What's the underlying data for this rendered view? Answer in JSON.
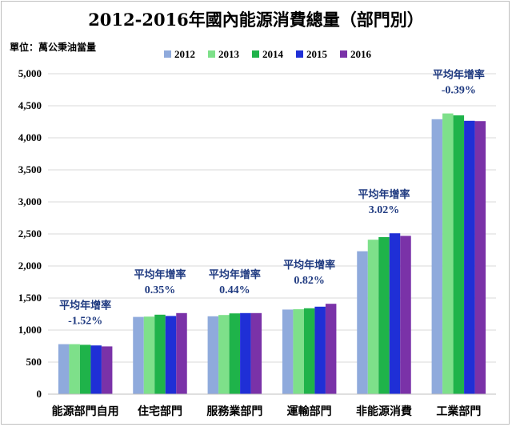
{
  "chart_data": {
    "type": "bar",
    "title": "2012-2016年國內能源消費總量（部門別）",
    "unit_label": "單位：萬公秉油當量",
    "categories": [
      "能源部門自用",
      "住宅部門",
      "服務業部門",
      "運輸部門",
      "非能源消費",
      "工業部門"
    ],
    "series": [
      {
        "name": "2012",
        "color": "#8faadc",
        "values": [
          780,
          1205,
          1215,
          1320,
          2230,
          4290
        ]
      },
      {
        "name": "2013",
        "color": "#7ee08a",
        "values": [
          780,
          1210,
          1235,
          1325,
          2410,
          4380
        ]
      },
      {
        "name": "2014",
        "color": "#1fb34a",
        "values": [
          770,
          1240,
          1260,
          1340,
          2450,
          4350
        ]
      },
      {
        "name": "2015",
        "color": "#1f2fd6",
        "values": [
          760,
          1220,
          1265,
          1365,
          2510,
          4265
        ]
      },
      {
        "name": "2016",
        "color": "#7a32a8",
        "values": [
          745,
          1265,
          1265,
          1410,
          2470,
          4260
        ]
      }
    ],
    "annotations": [
      {
        "label": "平均年增率",
        "rate": "-1.52%"
      },
      {
        "label": "平均年增率",
        "rate": "0.35%"
      },
      {
        "label": "平均年增率",
        "rate": "0.44%"
      },
      {
        "label": "平均年增率",
        "rate": "0.82%"
      },
      {
        "label": "平均年增率",
        "rate": "3.02%"
      },
      {
        "label": "平均年增率",
        "rate": "-0.39%"
      }
    ],
    "ylim": [
      0,
      5000
    ],
    "yticks": [
      0,
      500,
      1000,
      1500,
      2000,
      2500,
      3000,
      3500,
      4000,
      4500,
      5000
    ],
    "ytick_labels": [
      "0",
      "500",
      "1,000",
      "1,500",
      "2,000",
      "2,500",
      "3,000",
      "3,500",
      "4,000",
      "4,500",
      "5,000"
    ],
    "grid": true,
    "legend_position": "top"
  }
}
